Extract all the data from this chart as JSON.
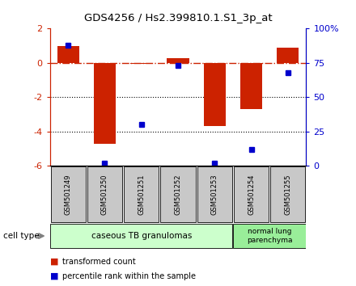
{
  "title": "GDS4256 / Hs2.399810.1.S1_3p_at",
  "samples": [
    "GSM501249",
    "GSM501250",
    "GSM501251",
    "GSM501252",
    "GSM501253",
    "GSM501254",
    "GSM501255"
  ],
  "red_values": [
    1.0,
    -4.7,
    -0.05,
    0.3,
    -3.7,
    -2.7,
    0.9
  ],
  "blue_values_pct": [
    88,
    2,
    30,
    73,
    2,
    12,
    68
  ],
  "ylim_left": [
    -6,
    2
  ],
  "ylim_right": [
    0,
    100
  ],
  "y_ticks_left": [
    -6,
    -4,
    -2,
    0,
    2
  ],
  "y_ticks_right": [
    0,
    25,
    50,
    75,
    100
  ],
  "y_ticks_right_labels": [
    "0",
    "25",
    "50",
    "75",
    "100%"
  ],
  "hline_y": 0,
  "dotted_lines": [
    -2,
    -4
  ],
  "bar_color": "#cc2200",
  "dot_color": "#0000cc",
  "cell_types": [
    {
      "label": "caseous TB granulomas",
      "n_samples": 5,
      "color": "#ccffcc"
    },
    {
      "label": "normal lung\nparenchyma",
      "n_samples": 2,
      "color": "#99ee99"
    }
  ],
  "cell_type_label": "cell type",
  "legend_red": "transformed count",
  "legend_blue": "percentile rank within the sample",
  "tick_label_bg": "#c8c8c8",
  "bar_width": 0.6,
  "n": 7
}
